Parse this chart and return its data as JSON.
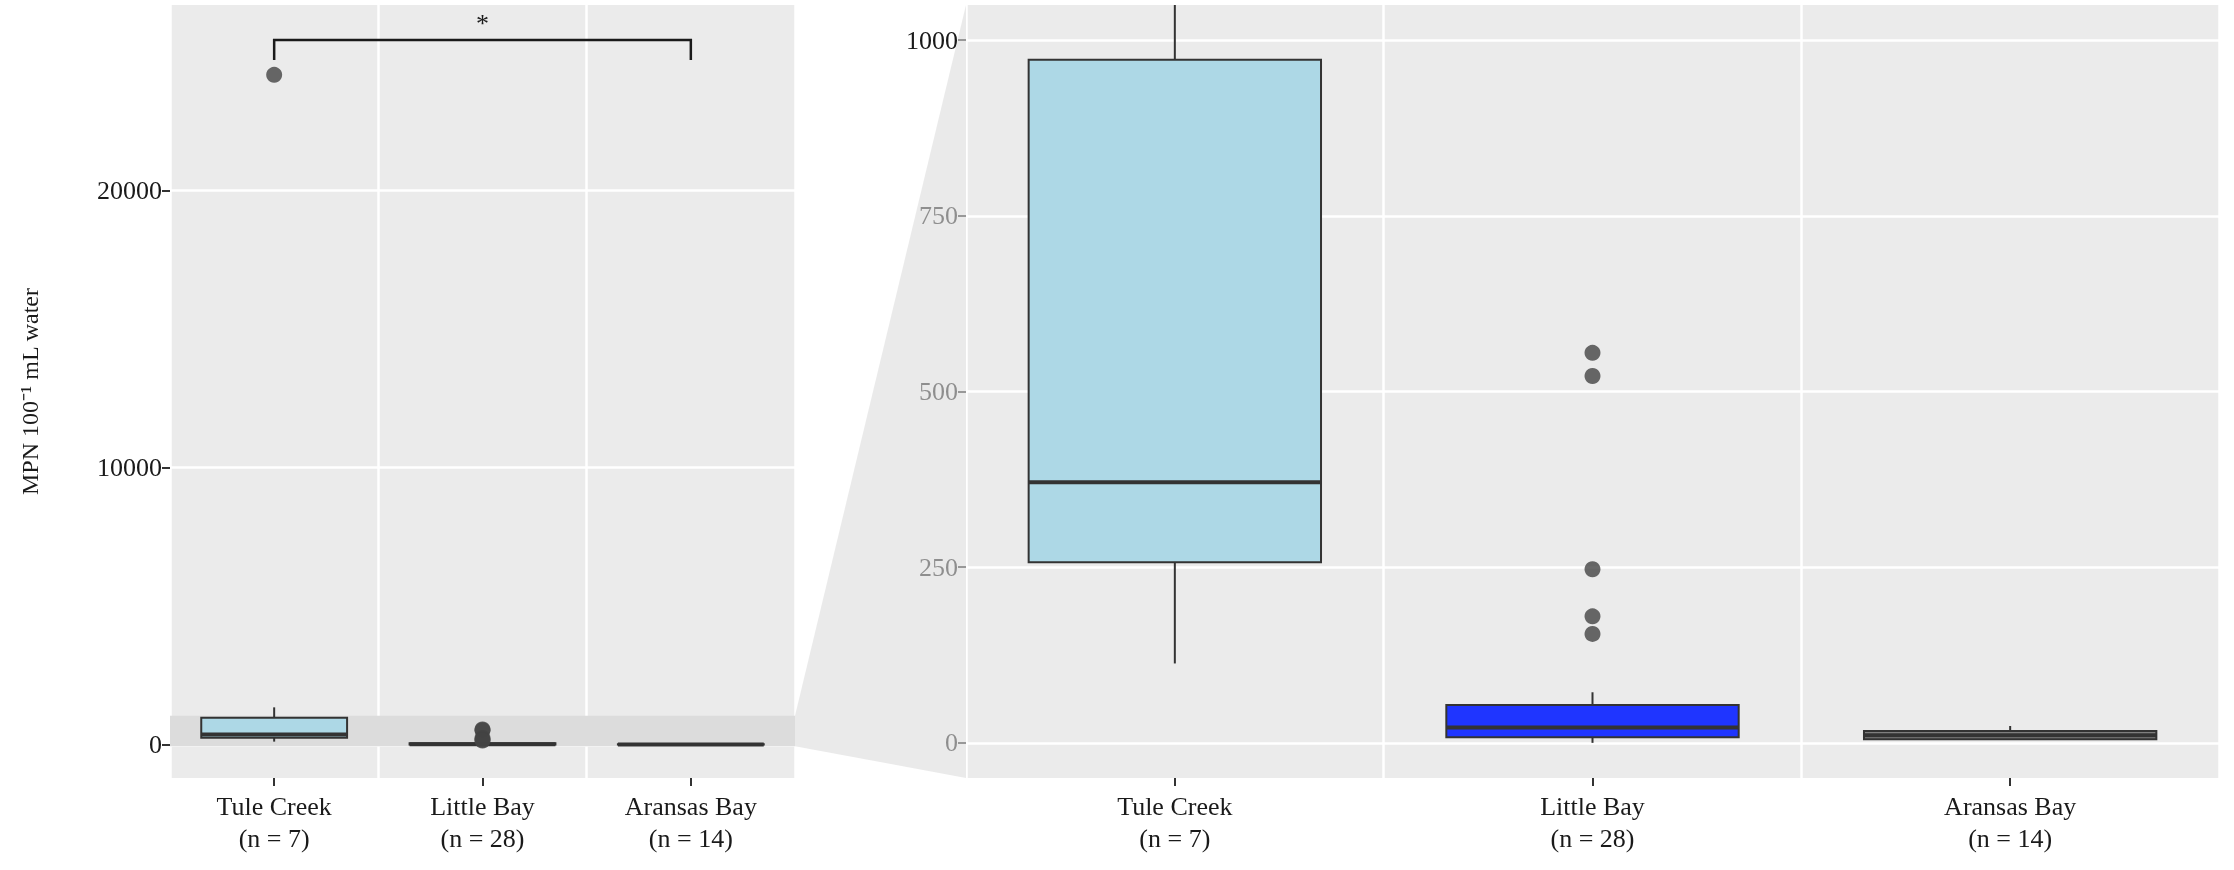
{
  "chart_data": [
    {
      "type": "box",
      "ylabel": "MPN 100⁻¹ mL water",
      "categories": [
        "Tule Creek\n(n = 7)",
        "Little Bay\n(n = 28)",
        "Aransas Bay\n(n = 14)"
      ],
      "colors": [
        "#add8e6",
        "#1f35ff",
        "#7f7f7f"
      ],
      "boxes": [
        {
          "low": 113,
          "q1": 257,
          "median": 371,
          "q3": 972,
          "high": 1350,
          "outliers": [
            24180
          ]
        },
        {
          "low": 0,
          "q1": 8,
          "median": 22,
          "q3": 54,
          "high": 72,
          "outliers": [
            555,
            522,
            247,
            180,
            155
          ]
        },
        {
          "low": 5,
          "q1": 5,
          "median": 11,
          "q3": 17,
          "high": 24
        }
      ],
      "ylim": [
        -1200,
        26700
      ],
      "yticks": [
        0,
        10000,
        20000
      ],
      "grid": true,
      "bands": [
        {
          "axis": "y",
          "from": -50,
          "to": 1050,
          "color": "#dcdcdc"
        }
      ],
      "annotations": [
        "*"
      ]
    },
    {
      "type": "box",
      "categories": [
        "Tule Creek\n(n = 7)",
        "Little Bay\n(n = 28)",
        "Aransas Bay\n(n = 14)"
      ],
      "colors": [
        "#add8e6",
        "#1f35ff",
        "#7f7f7f"
      ],
      "boxes": [
        {
          "low": 113,
          "q1": 257,
          "median": 371,
          "q3": 972,
          "high": 1350
        },
        {
          "low": 0,
          "q1": 8,
          "median": 22,
          "q3": 54,
          "high": 72,
          "outliers": [
            555,
            522,
            247,
            180,
            155
          ]
        },
        {
          "low": 5,
          "q1": 5,
          "median": 11,
          "q3": 17,
          "high": 24
        }
      ],
      "ylim": [
        -50,
        1050
      ],
      "yticks": [
        0,
        250,
        500,
        750,
        1000
      ],
      "grid": true
    }
  ]
}
